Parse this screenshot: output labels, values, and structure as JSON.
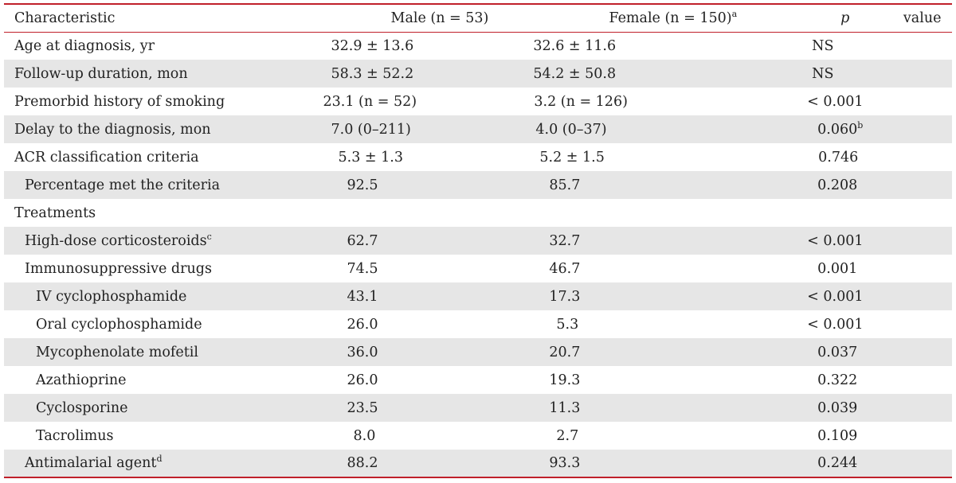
{
  "header": {
    "characteristic": "Characteristic",
    "male": "Male (n = 53)",
    "female": "Female (n = 150)",
    "female_sup": "a",
    "p_italic": "p",
    "p_rest": " value"
  },
  "rows": [
    {
      "label": "Age at diagnosis, yr",
      "male": "32.9 ± 13.6",
      "female": "32.6 ± 11.6",
      "p": "NS"
    },
    {
      "label": "Follow-up duration, mon",
      "male": "58.3 ± 52.2",
      "female": "54.2 ± 50.8",
      "p": "NS"
    },
    {
      "label": "Premorbid history of smoking",
      "male": "23.1 (n = 52)",
      "female": "3.2 (n = 126)",
      "p": "< 0.001"
    },
    {
      "label": "Delay to the diagnosis, mon",
      "male": "7.0 (0–211)",
      "female": "4.0 (0–37)",
      "p": "0.060",
      "p_sup": "b"
    },
    {
      "label": "ACR classification criteria",
      "male": "5.3 ± 1.3",
      "female": "5.2 ± 1.5",
      "p": "0.746"
    },
    {
      "label": "Percentage met the criteria",
      "male": "92.5",
      "female": "85.7",
      "p": "0.208"
    },
    {
      "label": "Treatments",
      "male": "",
      "female": "",
      "p": ""
    },
    {
      "label": "High-dose corticosteroids",
      "label_sup": "c",
      "male": "62.7",
      "female": "32.7",
      "p": "< 0.001"
    },
    {
      "label": "Immunosuppressive drugs",
      "male": "74.5",
      "female": "46.7",
      "p": "0.001"
    },
    {
      "label": "IV cyclophosphamide",
      "male": "43.1",
      "female": "17.3",
      "p": "< 0.001"
    },
    {
      "label": "Oral cyclophosphamide",
      "male": "26.0",
      "female": "5.3",
      "p": "< 0.001"
    },
    {
      "label": "Mycophenolate mofetil",
      "male": "36.0",
      "female": "20.7",
      "p": "0.037"
    },
    {
      "label": "Azathioprine",
      "male": "26.0",
      "female": "19.3",
      "p": "0.322"
    },
    {
      "label": "Cyclosporine",
      "male": "23.5",
      "female": "11.3",
      "p": "0.039"
    },
    {
      "label": "Tacrolimus",
      "male": "8.0",
      "female": "2.7",
      "p": "0.109"
    },
    {
      "label": "Antimalarial agent",
      "label_sup": "d",
      "male": "88.2",
      "female": "93.3",
      "p": "0.244"
    }
  ],
  "colors": {
    "rule": "#c0202a",
    "shade": "#e6e6e6",
    "text": "#222222"
  }
}
